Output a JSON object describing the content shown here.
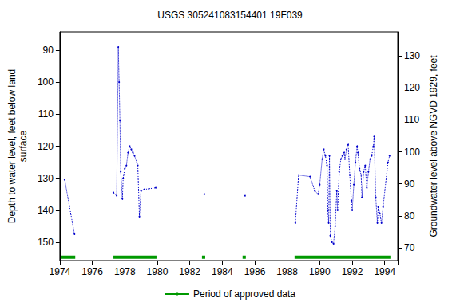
{
  "chart_data": {
    "type": "line",
    "title": "USGS 305241083154401 19F039",
    "ylabel": [
      "Depth to water level, feet below land",
      "surface"
    ],
    "y2label": "Groundwater level above NGVD 1929, feet",
    "x": [
      1974.3,
      1974.9,
      1976,
      1977.3,
      1977.5,
      1977.6,
      1977.65,
      1977.7,
      1977.75,
      1977.85,
      1977.9,
      1978.0,
      1978.1,
      1978.2,
      1978.3,
      1978.4,
      1978.5,
      1978.6,
      1978.8,
      1978.9,
      1979.0,
      1979.2,
      1979.9,
      1981,
      1982.9,
      1984,
      1985.4,
      1987,
      1988.5,
      1988.7,
      1989.4,
      1989.7,
      1989.9,
      1990.0,
      1990.15,
      1990.25,
      1990.35,
      1990.45,
      1990.5,
      1990.55,
      1990.6,
      1990.65,
      1990.75,
      1990.85,
      1990.95,
      1991.05,
      1991.1,
      1991.2,
      1991.3,
      1991.4,
      1991.5,
      1991.55,
      1991.65,
      1991.75,
      1991.85,
      1991.95,
      1992.0,
      1992.1,
      1992.2,
      1992.3,
      1992.35,
      1992.45,
      1992.55,
      1992.6,
      1992.7,
      1992.8,
      1992.9,
      1993.0,
      1993.1,
      1993.2,
      1993.3,
      1993.35,
      1993.45,
      1993.55,
      1993.6,
      1993.7,
      1993.8,
      1993.9,
      1994.2,
      1994.3
    ],
    "series": [
      {
        "color": "#0000cc",
        "line_style": "dotted",
        "marker": "circle",
        "values": [
          130.5,
          147.5,
          null,
          134.5,
          135.5,
          89,
          100,
          112,
          128,
          136.5,
          130,
          127,
          126,
          122,
          120,
          121,
          122,
          123,
          126,
          142,
          134,
          133.5,
          133,
          null,
          135,
          null,
          135.5,
          null,
          144,
          129,
          129.5,
          134,
          135,
          132,
          124,
          121,
          123,
          126,
          140,
          144,
          123,
          148,
          150,
          150.5,
          145,
          134,
          140,
          128,
          124,
          123,
          122,
          124,
          121,
          119.5,
          129,
          137,
          140,
          132,
          125,
          120,
          122,
          127,
          129,
          136,
          128,
          126,
          133,
          128,
          124,
          123,
          120,
          117,
          136,
          144,
          139,
          141,
          144,
          139,
          125,
          123
        ]
      },
      {
        "name": "Period of approved data",
        "color": "#009900",
        "type": "period",
        "periods": [
          [
            1974.1,
            1974.95
          ],
          [
            1977.3,
            1979.95
          ],
          [
            1982.75,
            1982.95
          ],
          [
            1985.25,
            1985.45
          ],
          [
            1988.45,
            1994.35
          ]
        ]
      }
    ],
    "xlim": [
      1974,
      1994.8
    ],
    "xticks": [
      1974,
      1976,
      1978,
      1980,
      1982,
      1984,
      1986,
      1988,
      1990,
      1992,
      1994
    ],
    "ylim": [
      155.75,
      84.25
    ],
    "yticks": [
      90,
      100,
      110,
      120,
      130,
      140,
      150
    ],
    "y2lim": [
      66,
      137.5
    ],
    "y2ticks": [
      70,
      80,
      90,
      100,
      110,
      120,
      130
    ],
    "legend": "bottom",
    "grid": false
  }
}
